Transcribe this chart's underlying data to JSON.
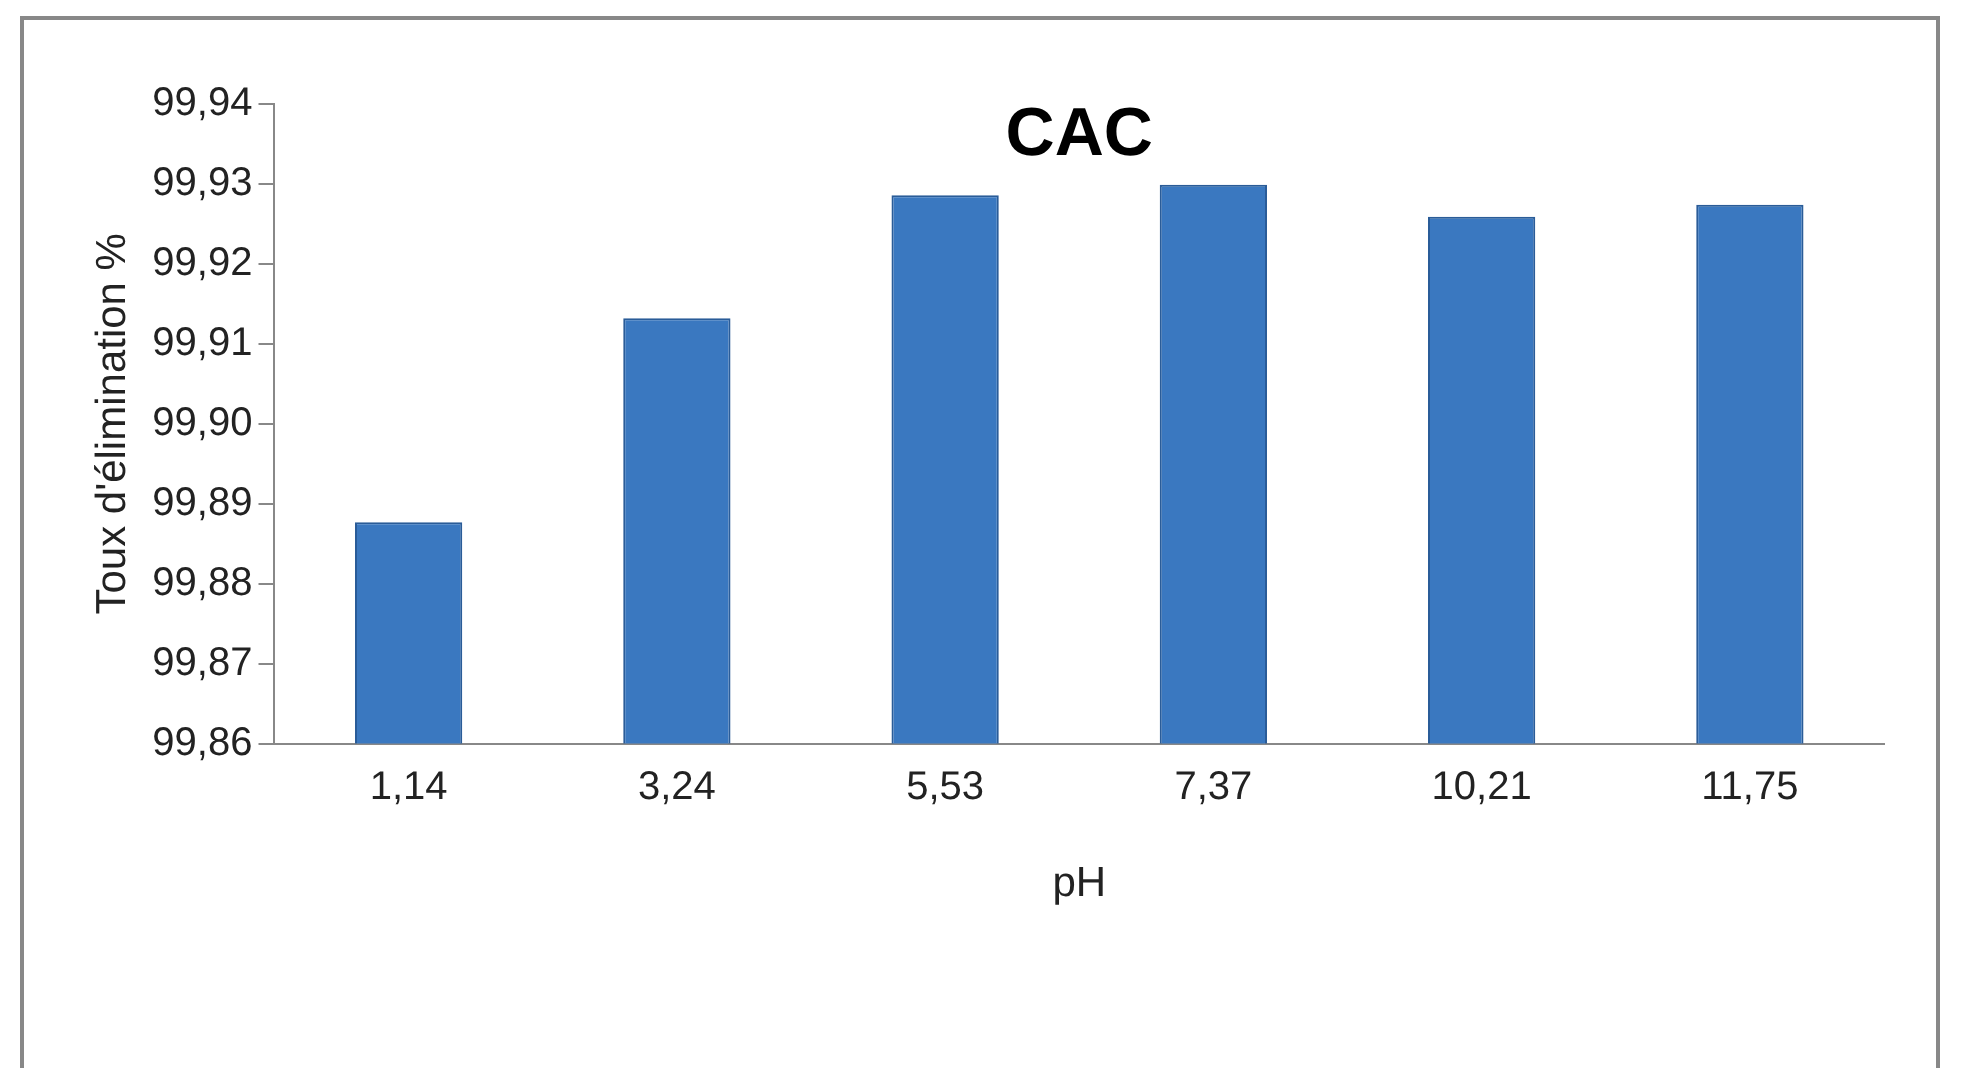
{
  "chart_data": {
    "type": "bar",
    "title": "CAC",
    "xlabel": "pH",
    "ylabel": "Toux d'élimination %",
    "categories": [
      "1,14",
      "3,24",
      "5,53",
      "7,37",
      "10,21",
      "11,75"
    ],
    "values": [
      99.8877,
      99.9132,
      99.9286,
      99.9299,
      99.9259,
      99.9274
    ],
    "color": "#3a78c0",
    "ylim": [
      99.86,
      99.94
    ],
    "yticks": [
      {
        "value": 99.86,
        "label": "99,86"
      },
      {
        "value": 99.87,
        "label": "99,87"
      },
      {
        "value": 99.88,
        "label": "99,88"
      },
      {
        "value": 99.89,
        "label": "99,89"
      },
      {
        "value": 99.9,
        "label": "99,90"
      },
      {
        "value": 99.91,
        "label": "99,91"
      },
      {
        "value": 99.92,
        "label": "99,92"
      },
      {
        "value": 99.93,
        "label": "99,93"
      },
      {
        "value": 99.94,
        "label": "99,94"
      }
    ],
    "grid": false,
    "legend": false
  }
}
